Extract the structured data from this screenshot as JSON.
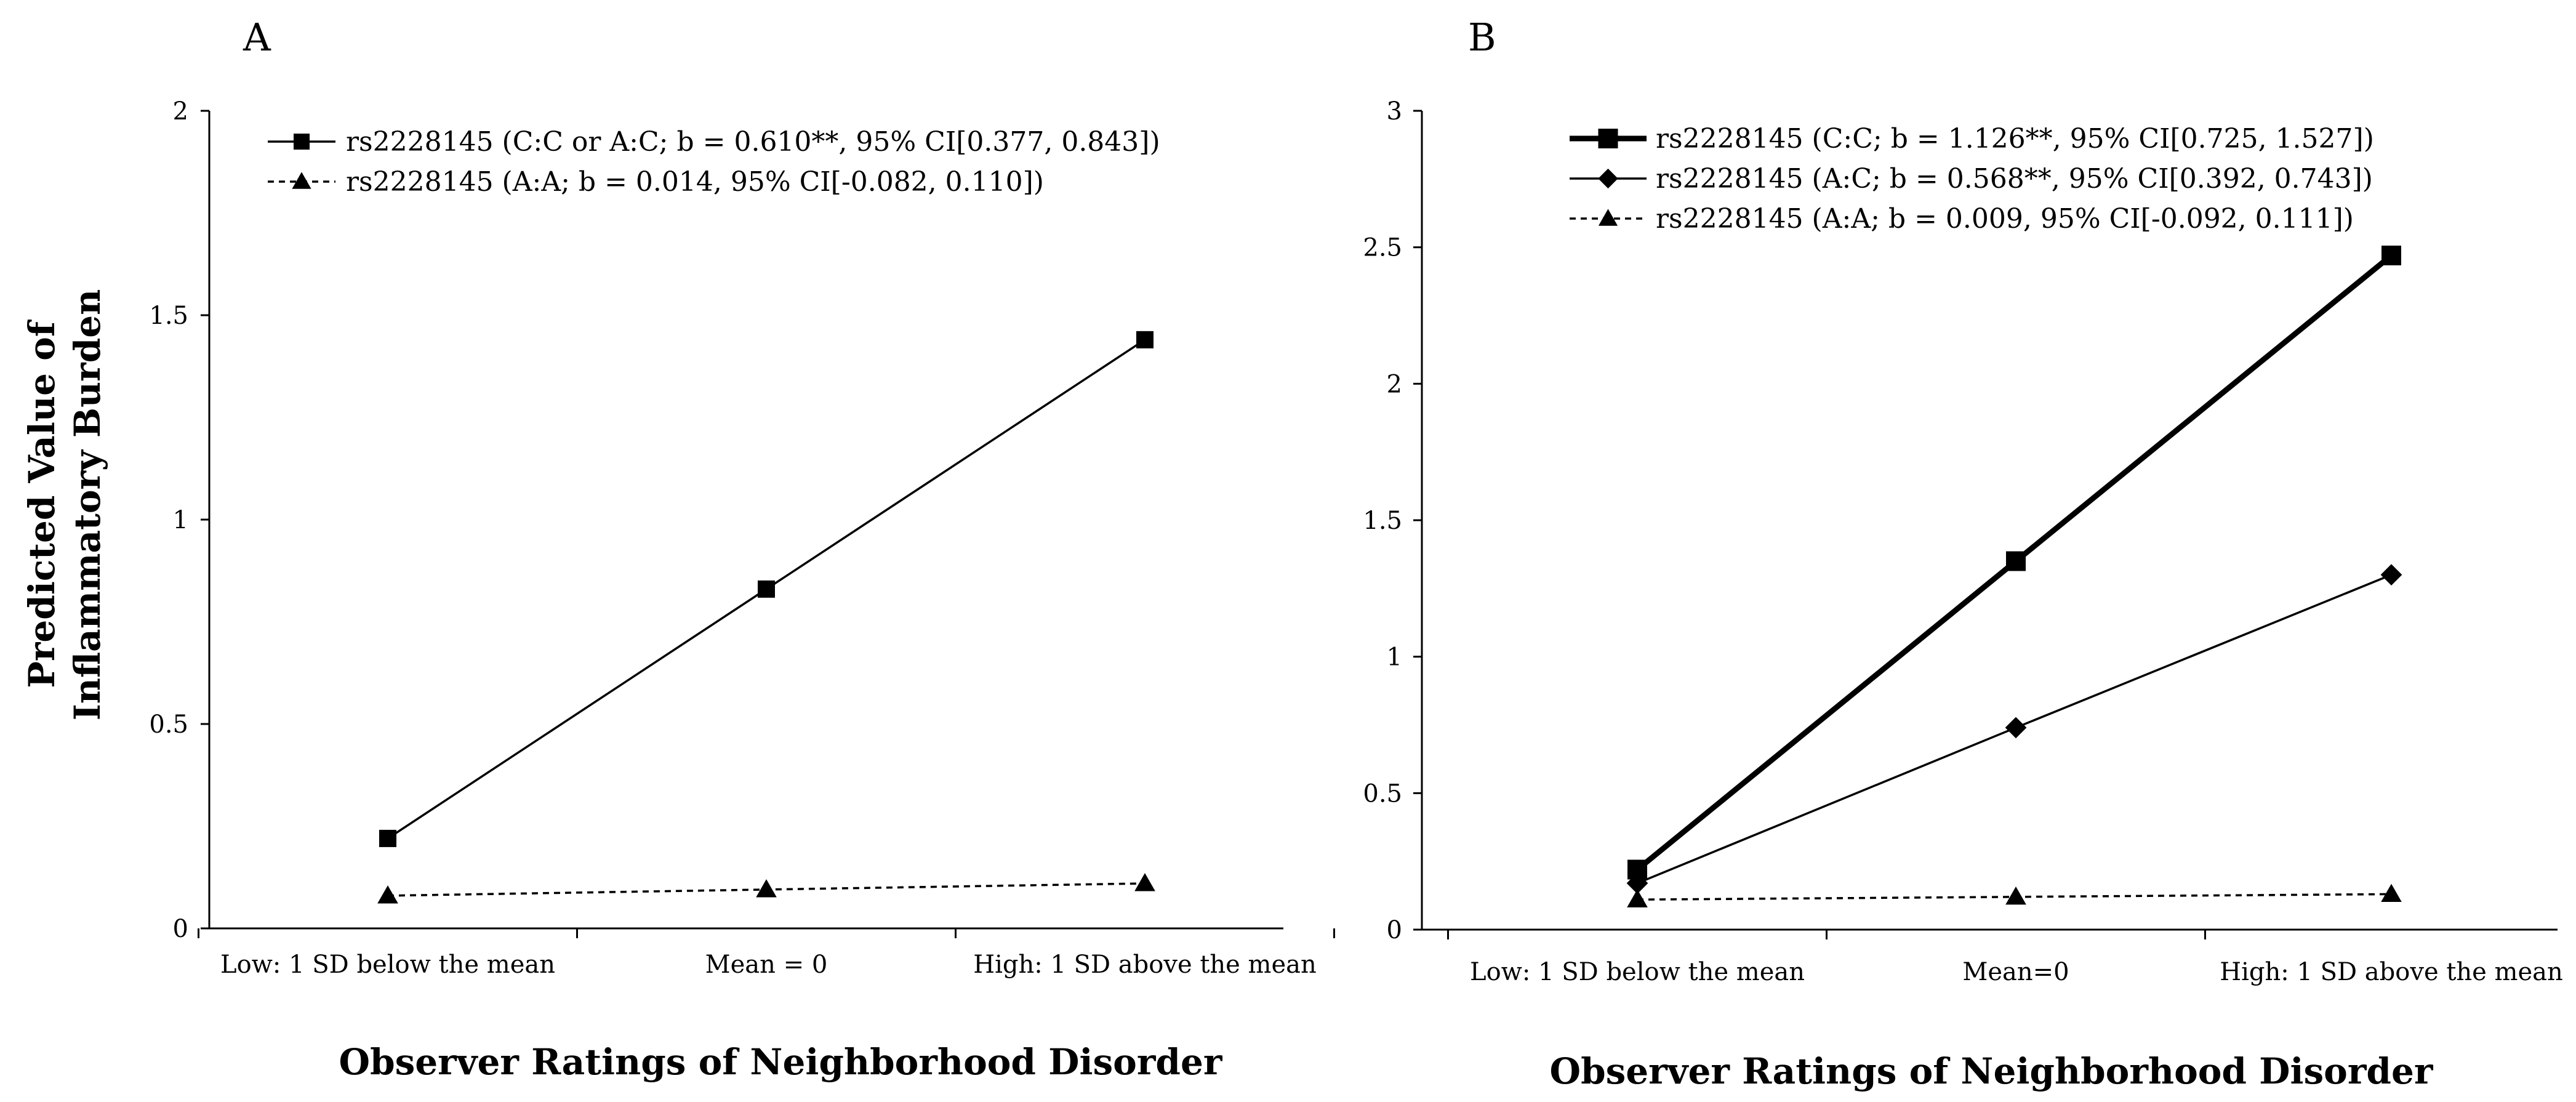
{
  "y_title_lines": [
    "Predicted Value of",
    "Inflammatory Burden"
  ],
  "chart_data": [
    {
      "panel": "A",
      "type": "line",
      "categories": [
        "Low: 1 SD below the mean",
        "Mean = 0",
        "High: 1 SD above the mean"
      ],
      "xlabel": "Observer Ratings of Neighborhood Disorder",
      "ylabel": "Predicted Value of Inflammatory Burden",
      "ylim": [
        0,
        2
      ],
      "yticks": [
        0,
        0.5,
        1,
        1.5,
        2
      ],
      "ytick_labels": [
        "0",
        "0.5",
        "1",
        "1.5",
        "2"
      ],
      "legend_position": "top-left",
      "series": [
        {
          "name": "rs2228145 (C:C or A:C; b = 0.610**, 95% CI[0.377, 0.843])",
          "values": [
            0.22,
            0.83,
            1.44
          ],
          "marker": "square",
          "dash": "solid",
          "weight": "normal"
        },
        {
          "name": "rs2228145 (A:A; b = 0.014, 95% CI[-0.082, 0.110])",
          "values": [
            0.08,
            0.095,
            0.11
          ],
          "marker": "triangle",
          "dash": "dashed",
          "weight": "normal"
        }
      ]
    },
    {
      "panel": "B",
      "type": "line",
      "categories": [
        "Low: 1 SD below the mean",
        "Mean=0",
        "High: 1 SD above the mean"
      ],
      "xlabel": "Observer Ratings of Neighborhood Disorder",
      "ylabel": "",
      "ylim": [
        0,
        3
      ],
      "yticks": [
        0,
        0.5,
        1,
        1.5,
        2,
        2.5,
        3
      ],
      "ytick_labels": [
        "0",
        "0.5",
        "1",
        "1.5",
        "2",
        "2.5",
        "3"
      ],
      "legend_position": "top-left",
      "series": [
        {
          "name": "rs2228145 (C:C; b = 1.126**, 95% CI[0.725, 1.527])",
          "values": [
            0.22,
            1.35,
            2.47
          ],
          "marker": "square",
          "dash": "solid",
          "weight": "bold"
        },
        {
          "name": "rs2228145 (A:C; b = 0.568**, 95% CI[0.392, 0.743])",
          "values": [
            0.17,
            0.74,
            1.3
          ],
          "marker": "diamond",
          "dash": "solid",
          "weight": "normal"
        },
        {
          "name": "rs2228145 (A:A; b = 0.009, 95% CI[-0.092, 0.111])",
          "values": [
            0.11,
            0.12,
            0.13
          ],
          "marker": "triangle",
          "dash": "dashed",
          "weight": "normal"
        }
      ]
    }
  ]
}
